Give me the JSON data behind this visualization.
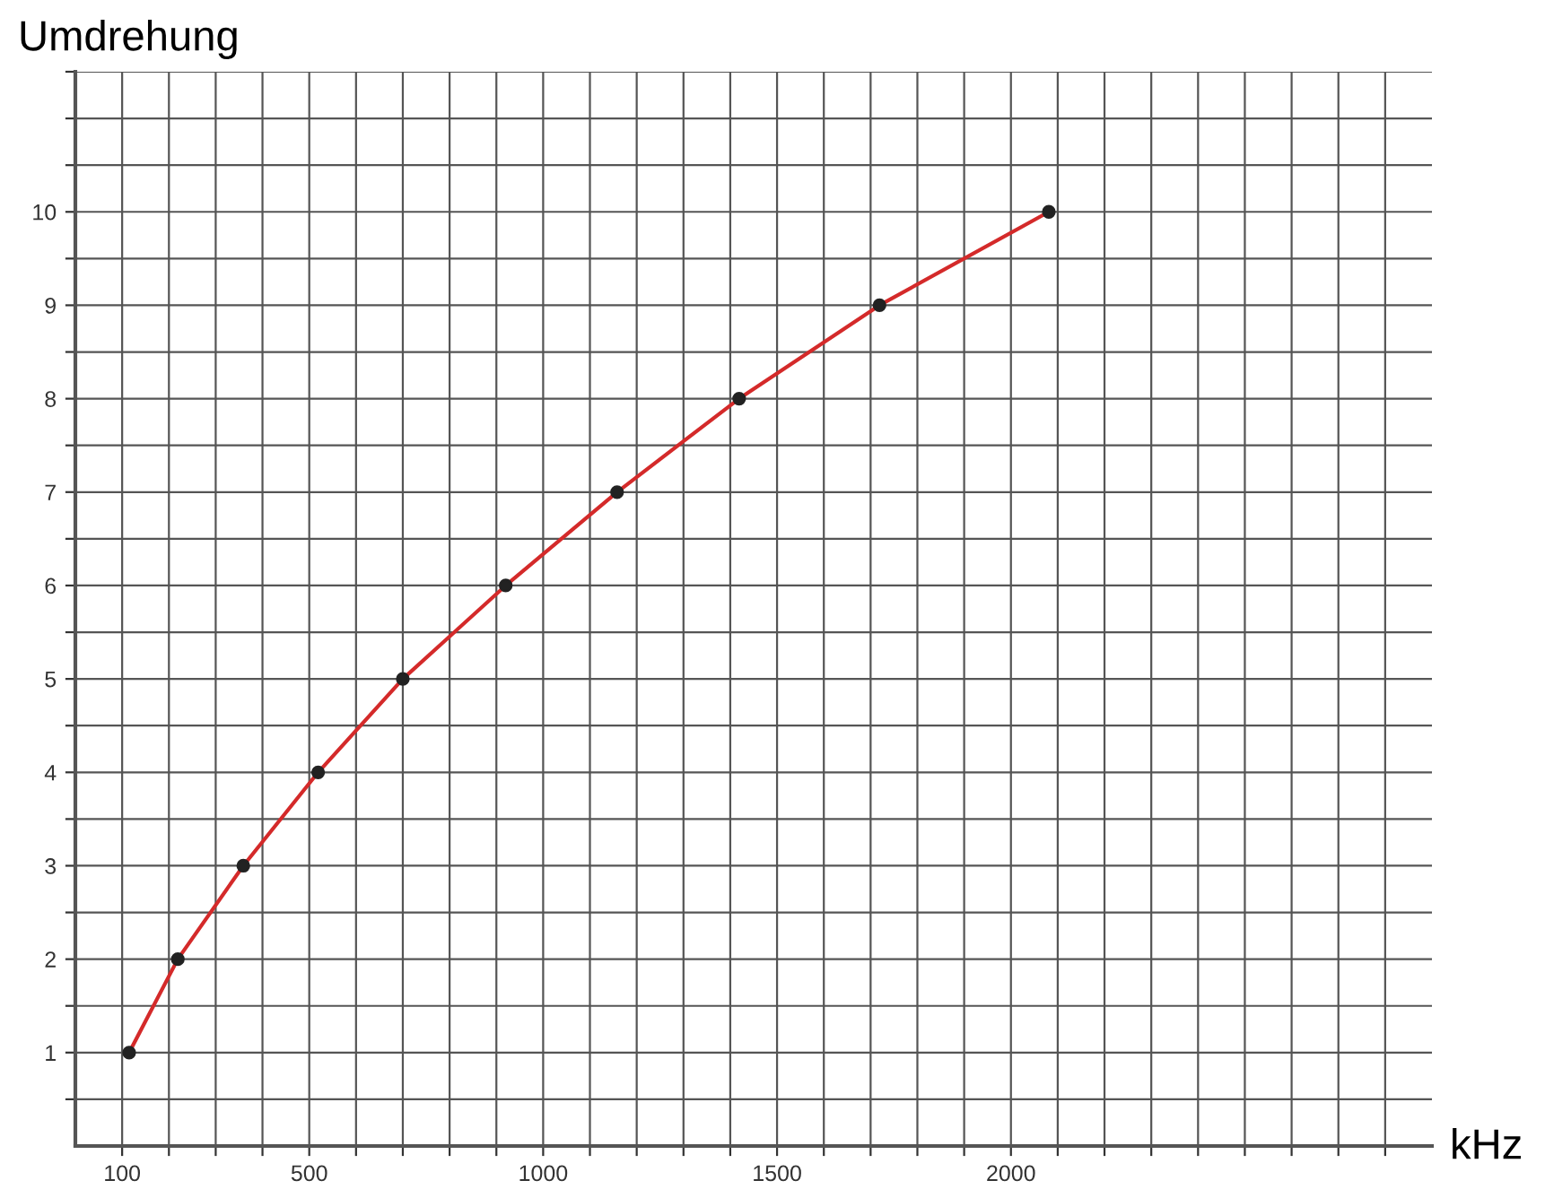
{
  "chart_data": {
    "type": "line",
    "xlabel": "kHz",
    "ylabel": "Umdrehung",
    "x": [
      115,
      219,
      359,
      519,
      700,
      920,
      1158,
      1419,
      1719,
      2081
    ],
    "series": [
      {
        "color": "#d42a2a",
        "values": [
          1,
          2,
          3,
          4,
          5,
          6,
          7,
          8,
          9,
          10
        ]
      }
    ],
    "marker": "circle",
    "line_style": "solid",
    "grid": true,
    "xlim": [
      0,
      2900
    ],
    "xticks": [
      {
        "value": 100,
        "label": "100"
      },
      {
        "value": 200,
        "label": null
      },
      {
        "value": 300,
        "label": null
      },
      {
        "value": 400,
        "label": null
      },
      {
        "value": 500,
        "label": "500"
      },
      {
        "value": 600,
        "label": null
      },
      {
        "value": 700,
        "label": null
      },
      {
        "value": 800,
        "label": null
      },
      {
        "value": 900,
        "label": null
      },
      {
        "value": 1000,
        "label": "1000"
      },
      {
        "value": 1100,
        "label": null
      },
      {
        "value": 1200,
        "label": null
      },
      {
        "value": 1300,
        "label": null
      },
      {
        "value": 1400,
        "label": null
      },
      {
        "value": 1500,
        "label": "1500"
      },
      {
        "value": 1600,
        "label": null
      },
      {
        "value": 1700,
        "label": null
      },
      {
        "value": 1800,
        "label": null
      },
      {
        "value": 1900,
        "label": null
      },
      {
        "value": 2000,
        "label": "2000"
      },
      {
        "value": 2100,
        "label": null
      },
      {
        "value": 2200,
        "label": null
      },
      {
        "value": 2300,
        "label": null
      },
      {
        "value": 2400,
        "label": null
      },
      {
        "value": 2500,
        "label": null
      },
      {
        "value": 2600,
        "label": null
      },
      {
        "value": 2700,
        "label": null
      },
      {
        "value": 2800,
        "label": null
      }
    ],
    "ylim": [
      0,
      11.5
    ],
    "yticks": [
      {
        "value": 0.5,
        "label": null
      },
      1,
      {
        "value": 1.5,
        "label": null
      },
      2,
      {
        "value": 2.5,
        "label": null
      },
      3,
      {
        "value": 3.5,
        "label": null
      },
      4,
      {
        "value": 4.5,
        "label": null
      },
      5,
      {
        "value": 5.5,
        "label": null
      },
      6,
      {
        "value": 6.5,
        "label": null
      },
      7,
      {
        "value": 7.5,
        "label": null
      },
      8,
      {
        "value": 8.5,
        "label": null
      },
      9,
      {
        "value": 9.5,
        "label": null
      },
      10,
      {
        "value": 10.5,
        "label": null
      },
      {
        "value": 11,
        "label": null
      },
      {
        "value": 11.5,
        "label": null
      }
    ]
  }
}
